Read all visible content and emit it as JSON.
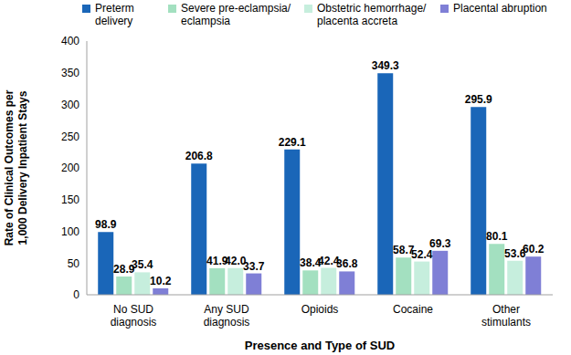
{
  "chart_data": {
    "type": "bar",
    "x_label": "Presence and Type of SUD",
    "y_label": "Rate of Clinical Outcomes per 1,000 Delivery Inpatient Stays",
    "categories": [
      "No SUD diagnosis",
      "Any SUD diagnosis",
      "Opioids",
      "Cocaine",
      "Other stimulants"
    ],
    "series": [
      {
        "name": "Preterm delivery",
        "color": "#1a66b8",
        "values": [
          98.9,
          206.8,
          229.1,
          349.3,
          295.9
        ],
        "value_labels": [
          "98.9",
          "206.8",
          "229.1",
          "349.3",
          "295.9"
        ]
      },
      {
        "name": "Severe pre-eclampsia/ eclampsia",
        "color": "#a3e0c0",
        "values": [
          28.9,
          41.9,
          38.4,
          58.7,
          80.1
        ],
        "value_labels": [
          "28.9",
          "41.9",
          "38.4",
          "58.7",
          "80.1"
        ]
      },
      {
        "name": "Obstetric hemorrhage/ placenta accreta",
        "color": "#c6eedd",
        "values": [
          35.4,
          42.0,
          42.4,
          52.4,
          53.6
        ],
        "value_labels": [
          "35.4",
          "42.0",
          "42.4",
          "52.4",
          "53.6"
        ]
      },
      {
        "name": "Placental abruption",
        "color": "#7f7fd6",
        "values": [
          10.2,
          33.7,
          36.8,
          69.3,
          60.2
        ],
        "value_labels": [
          "10.2",
          "33.7",
          "36.8",
          "69.3",
          "60.2"
        ]
      }
    ],
    "ylim": [
      0,
      400
    ],
    "yticks": [
      0,
      50,
      100,
      150,
      200,
      250,
      300,
      350,
      400
    ],
    "grid": false,
    "data_labels": true,
    "legend": "top"
  }
}
